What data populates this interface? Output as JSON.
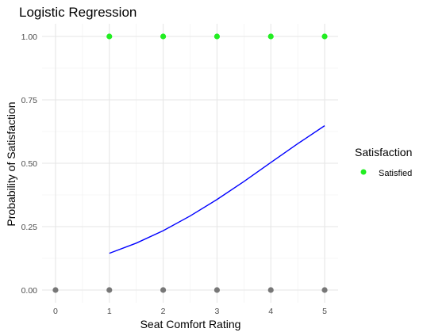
{
  "chart_data": {
    "type": "scatter",
    "title": "Logistic Regression",
    "xlabel": "Seat Comfort Rating",
    "ylabel": "Probability of Satisfaction",
    "xlim": [
      -0.25,
      5.25
    ],
    "ylim": [
      -0.05,
      1.05
    ],
    "x_ticks": [
      "0",
      "1",
      "2",
      "3",
      "4",
      "5"
    ],
    "y_ticks": [
      "0.00",
      "0.25",
      "0.50",
      "0.75",
      "1.00"
    ],
    "grid": true,
    "legend": {
      "title": "Satisfaction",
      "position": "right",
      "entries": [
        {
          "label": "Satisfied",
          "color": "#22ee22"
        }
      ]
    },
    "series": [
      {
        "kind": "points",
        "color": "#22ee22",
        "x": [
          1,
          2,
          3,
          4,
          5
        ],
        "y": [
          1,
          1,
          1,
          1,
          1
        ]
      },
      {
        "kind": "points",
        "color": "#777777",
        "x": [
          0,
          1,
          2,
          3,
          4,
          5
        ],
        "y": [
          0,
          0,
          0,
          0,
          0,
          0
        ]
      },
      {
        "kind": "line",
        "color": "#0000ff",
        "x": [
          1,
          1.5,
          2,
          2.5,
          3,
          3.5,
          4,
          4.5,
          5
        ],
        "y": [
          0.145,
          0.185,
          0.234,
          0.292,
          0.357,
          0.428,
          0.503,
          0.577,
          0.648
        ]
      }
    ]
  }
}
